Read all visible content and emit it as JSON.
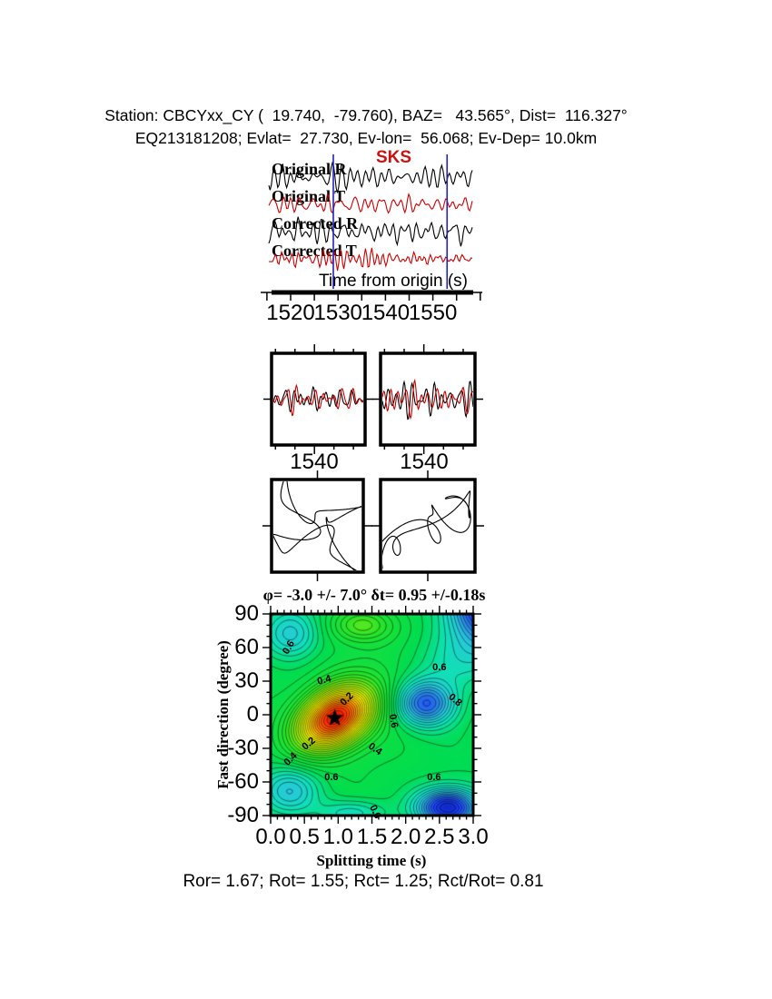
{
  "header": {
    "line1": "Station: CBCYxx_CY (  19.740,  -79.760), BAZ=   43.565°, Dist=  116.327°",
    "line2": "EQ213181208; Evlat=  27.730, Ev-lon=  56.068; Ev-Dep= 10.0km"
  },
  "summary": {
    "text": "Ror= 1.67; Rot= 1.55; Rct= 1.25; Rct/Rot= 0.81",
    "Ror": 1.67,
    "Rot": 1.55,
    "Rct": 1.25,
    "Rct_over_Rot": 0.81
  },
  "chart_data": [
    {
      "id": "waveforms",
      "type": "line",
      "phase_label": "SKS",
      "phase_label_color": "#cc1111",
      "xlabel": "Time from origin (s)",
      "xlim": [
        1515,
        1559
      ],
      "x_ticks": [
        1520,
        1530,
        1540,
        1550
      ],
      "x_minor_interval": 5,
      "window_markers": [
        1529,
        1553
      ],
      "window_color": "#2222bb",
      "traces": [
        {
          "label": "Original R",
          "color": "#000000"
        },
        {
          "label": "Original T",
          "color": "#cc0000"
        },
        {
          "label": "Corrected R",
          "color": "#000000"
        },
        {
          "label": "Corrected T",
          "color": "#cc0000"
        }
      ]
    },
    {
      "id": "windowed-pair",
      "type": "line",
      "panels": [
        {
          "tick_label": "1540",
          "x_ticks": [
            1540
          ],
          "xlim": [
            1529,
            1553
          ],
          "trace_colors": [
            "#000000",
            "#cc0000"
          ]
        },
        {
          "tick_label": "1540",
          "x_ticks": [
            1540
          ],
          "xlim": [
            1529,
            1553
          ],
          "trace_colors": [
            "#000000",
            "#cc0000"
          ]
        }
      ]
    },
    {
      "id": "particle-motion",
      "type": "line",
      "color": "#000000",
      "panels": [
        {
          "description": "particle motion, original"
        },
        {
          "description": "particle motion, corrected"
        }
      ]
    },
    {
      "id": "error-surface",
      "type": "heatmap",
      "title": "φ= -3.0 +/- 7.0° δt= 0.95 +/-0.18s",
      "xlabel": "Splitting time (s)",
      "ylabel": "Fast direction (degree)",
      "xlim": [
        0,
        3
      ],
      "ylim": [
        -90,
        90
      ],
      "x_ticks": [
        "0.0",
        "0.5",
        "1.0",
        "1.5",
        "2.0",
        "2.5",
        "3.0"
      ],
      "y_ticks": [
        "90",
        "60",
        "30",
        "0",
        "-30",
        "-60",
        "-90"
      ],
      "x_minor_interval": 0.1,
      "y_minor_interval": 10,
      "contour_interval": 0.025,
      "grid": false,
      "best_fit": {
        "marker": "star",
        "x": 0.95,
        "y": -3,
        "phi_deg": -3.0,
        "phi_err_deg": 7.0,
        "dt_s": 0.95,
        "dt_err_s": 0.18
      },
      "contour_labels": [
        {
          "text": "0.6",
          "x": 0.27,
          "y": 60,
          "rot": -60
        },
        {
          "text": "0.4",
          "x": 0.8,
          "y": 31,
          "rot": -15
        },
        {
          "text": "0.2",
          "x": 1.13,
          "y": 14,
          "rot": -45
        },
        {
          "text": "0.2",
          "x": 0.56,
          "y": -26,
          "rot": -40
        },
        {
          "text": "0.4",
          "x": 0.3,
          "y": -40,
          "rot": -45
        },
        {
          "text": "0.4",
          "x": 1.55,
          "y": -31,
          "rot": 35
        },
        {
          "text": "0.6",
          "x": 1.82,
          "y": -6,
          "rot": 80
        },
        {
          "text": "0.6",
          "x": 2.5,
          "y": 42,
          "rot": 0
        },
        {
          "text": "0.8",
          "x": 2.73,
          "y": 13,
          "rot": 40
        },
        {
          "text": "0.6",
          "x": 0.9,
          "y": -56,
          "rot": 0
        },
        {
          "text": "0.6",
          "x": 2.42,
          "y": -56,
          "rot": 0
        },
        {
          "text": "0.6",
          "x": 1.55,
          "y": -87,
          "rot": 65
        }
      ],
      "colormap_stops": [
        [
          0.0,
          "#e61400"
        ],
        [
          0.05,
          "#ff3c00"
        ],
        [
          0.12,
          "#ff7d00"
        ],
        [
          0.19,
          "#ffbe00"
        ],
        [
          0.26,
          "#fdee00"
        ],
        [
          0.33,
          "#cdf400"
        ],
        [
          0.41,
          "#8cee14"
        ],
        [
          0.5,
          "#2ae428"
        ],
        [
          0.62,
          "#00dc50"
        ],
        [
          0.7,
          "#10e0b4"
        ],
        [
          0.78,
          "#28c8dc"
        ],
        [
          0.86,
          "#2882e6"
        ],
        [
          0.93,
          "#1e46ff"
        ],
        [
          1.0,
          "#0f28c8"
        ],
        [
          1.2,
          "#071e8c"
        ]
      ],
      "surface_base": 0.605,
      "surface_features": [
        {
          "x": 0.95,
          "y": -3,
          "sx": 0.52,
          "sy": 26,
          "amp": -0.6,
          "tilt": 0.7
        },
        {
          "x": 2.3,
          "y": 10,
          "sx": 0.42,
          "sy": 20,
          "amp": 0.3,
          "tilt": 0
        },
        {
          "x": 3.25,
          "y": 100,
          "sx": 0.55,
          "sy": 38,
          "amp": 0.42,
          "tilt": 0
        },
        {
          "x": 2.62,
          "y": -83,
          "sx": 0.45,
          "sy": 16,
          "amp": 0.38,
          "tilt": 0
        },
        {
          "x": 0.3,
          "y": 72,
          "sx": 0.4,
          "sy": 22,
          "amp": 0.15,
          "tilt": 0
        },
        {
          "x": 0.28,
          "y": -68,
          "sx": 0.42,
          "sy": 20,
          "amp": 0.15,
          "tilt": 0
        },
        {
          "x": 1.35,
          "y": 80,
          "sx": 0.45,
          "sy": 15,
          "amp": -0.14,
          "tilt": 0
        },
        {
          "x": 1.2,
          "y": -88,
          "sx": 0.5,
          "sy": 12,
          "amp": 0.11,
          "tilt": 0
        },
        {
          "x": 2.75,
          "y": 45,
          "sx": 0.6,
          "sy": 25,
          "amp": 0.08,
          "tilt": 0
        }
      ]
    }
  ]
}
